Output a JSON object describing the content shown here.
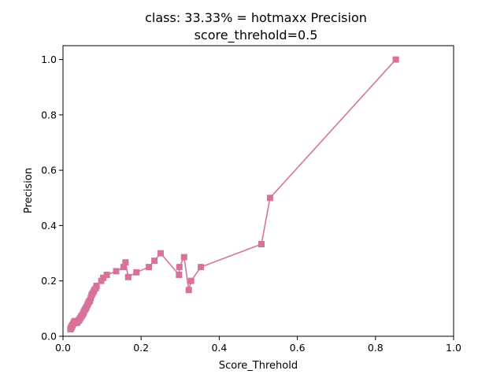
{
  "chart_data": {
    "type": "line",
    "title": "class: 33.33% = hotmaxx Precision",
    "subtitle": "score_threhold=0.5",
    "xlabel": "Score_Threhold",
    "ylabel": "Precision",
    "xlim": [
      0,
      1
    ],
    "ylim": [
      0,
      1.05
    ],
    "xticks": [
      "0.0",
      "0.2",
      "0.4",
      "0.6",
      "0.8",
      "1.0"
    ],
    "yticks": [
      "0.0",
      "0.2",
      "0.4",
      "0.6",
      "0.8",
      "1.0"
    ],
    "grid": false,
    "marker": "square",
    "color": "#d9729b",
    "series": [
      {
        "x": [
          0.852,
          0.53,
          0.508,
          0.353,
          0.328,
          0.322,
          0.31,
          0.298,
          0.297,
          0.25,
          0.234,
          0.22,
          0.188,
          0.167,
          0.16,
          0.155,
          0.136,
          0.112,
          0.103,
          0.098,
          0.086,
          0.084,
          0.08,
          0.078,
          0.075,
          0.073,
          0.071,
          0.069,
          0.067,
          0.065,
          0.063,
          0.061,
          0.059,
          0.057,
          0.055,
          0.053,
          0.052,
          0.05,
          0.048,
          0.046,
          0.044,
          0.042,
          0.04,
          0.038,
          0.036,
          0.034,
          0.032,
          0.03,
          0.028,
          0.026,
          0.024,
          0.023,
          0.022,
          0.021,
          0.02,
          0.019
        ],
        "y": [
          1.0,
          0.5,
          0.333,
          0.25,
          0.2,
          0.167,
          0.286,
          0.25,
          0.222,
          0.3,
          0.273,
          0.25,
          0.231,
          0.214,
          0.267,
          0.25,
          0.235,
          0.222,
          0.211,
          0.2,
          0.182,
          0.174,
          0.167,
          0.16,
          0.154,
          0.148,
          0.138,
          0.129,
          0.125,
          0.121,
          0.114,
          0.108,
          0.102,
          0.098,
          0.093,
          0.087,
          0.083,
          0.078,
          0.074,
          0.07,
          0.065,
          0.06,
          0.057,
          0.054,
          0.05,
          0.048,
          0.052,
          0.055,
          0.05,
          0.045,
          0.04,
          0.036,
          0.033,
          0.031,
          0.028,
          0.025
        ]
      }
    ]
  }
}
